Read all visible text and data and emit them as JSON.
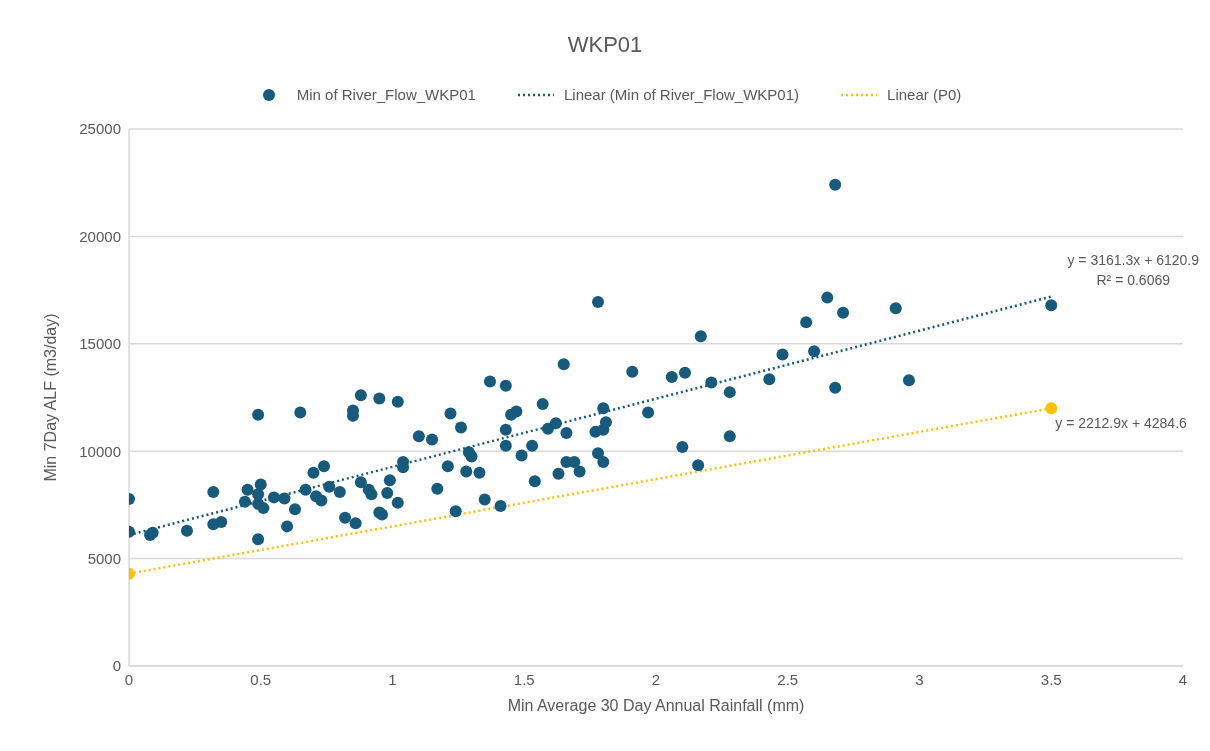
{
  "chart_data": {
    "type": "scatter",
    "title": "WKP01",
    "xlabel": "Min Average 30 Day Annual Rainfall (mm)",
    "ylabel": "Min 7Day ALF (m3/day)",
    "xlim": [
      0,
      4
    ],
    "xticks": [
      0,
      0.5,
      1,
      1.5,
      2,
      2.5,
      3,
      3.5,
      4
    ],
    "ylim": [
      0,
      25000
    ],
    "yticks": [
      0,
      5000,
      10000,
      15000,
      20000,
      25000
    ],
    "grid": "y",
    "legend": "top",
    "marker": "circle",
    "annotations": [
      {
        "text": "y = 3161.3x + 6120.9",
        "x": 3.5,
        "y": 17200
      },
      "R² = 0.6069",
      {
        "text": "y = 2212.9x + 4284.6",
        "x": 3.5,
        "y": 12000
      }
    ],
    "series": [
      {
        "name": "Min of River_Flow_WKP01",
        "color": "#175a7b",
        "x": [
          0,
          0,
          0.08,
          0.09,
          0.22,
          0.32,
          0.32,
          0.35,
          0.44,
          0.45,
          0.49,
          0.49,
          0.49,
          0.49,
          0.5,
          0.51,
          0.55,
          0.59,
          0.6,
          0.63,
          0.65,
          0.67,
          0.7,
          0.71,
          0.74,
          0.73,
          0.76,
          0.8,
          0.82,
          0.85,
          0.85,
          0.86,
          0.88,
          0.88,
          0.91,
          0.92,
          0.95,
          0.95,
          0.96,
          0.98,
          0.99,
          1.02,
          1.02,
          1.04,
          1.04,
          1.1,
          1.15,
          1.17,
          1.21,
          1.22,
          1.24,
          1.26,
          1.28,
          1.29,
          1.3,
          1.33,
          1.35,
          1.37,
          1.41,
          1.43,
          1.43,
          1.43,
          1.45,
          1.47,
          1.49,
          1.53,
          1.54,
          1.57,
          1.59,
          1.62,
          1.63,
          1.65,
          1.66,
          1.66,
          1.69,
          1.71,
          1.77,
          1.78,
          1.78,
          1.8,
          1.8,
          1.8,
          1.81,
          1.91,
          1.97,
          2.06,
          2.1,
          2.11,
          2.16,
          2.17,
          2.21,
          2.28,
          2.28,
          2.43,
          2.48,
          2.57,
          2.6,
          2.65,
          2.68,
          2.68,
          2.71,
          2.91,
          2.96,
          3.5
        ],
        "values": [
          7770,
          6250,
          6100,
          6200,
          6300,
          6600,
          8100,
          6700,
          7650,
          8200,
          11700,
          8000,
          7550,
          5900,
          8450,
          7350,
          7850,
          7800,
          6500,
          7300,
          11800,
          8200,
          9000,
          7900,
          9300,
          7700,
          8350,
          8100,
          6900,
          11900,
          11650,
          6650,
          8550,
          12600,
          8200,
          8000,
          12450,
          7150,
          7050,
          8050,
          8650,
          12300,
          7600,
          9250,
          9500,
          10700,
          10550,
          8250,
          9300,
          11750,
          7200,
          11100,
          9050,
          9950,
          9750,
          9000,
          7750,
          13250,
          7450,
          11000,
          10250,
          13050,
          11700,
          11850,
          9800,
          10250,
          8600,
          12200,
          11050,
          11300,
          8950,
          14050,
          10850,
          9500,
          9500,
          9050,
          10900,
          16950,
          9900,
          11000,
          9500,
          12000,
          11350,
          13700,
          11800,
          13450,
          10200,
          13650,
          9350,
          15350,
          13200,
          12750,
          10700,
          13350,
          14500,
          16000,
          14650,
          17150,
          22400,
          12950,
          16450,
          16650,
          13300,
          16800
        ]
      },
      {
        "name": "Linear (Min of River_Flow_WKP01)",
        "type": "line",
        "color": "#175a7b",
        "line_style": "dotted",
        "marker": "none",
        "x": [
          0,
          3.5
        ],
        "values": [
          6100,
          17200
        ]
      },
      {
        "color": "#ffc000",
        "x": [
          0,
          3.5
        ],
        "values": [
          4300,
          12000
        ]
      },
      {
        "name": "Linear (P0)",
        "type": "line",
        "color": "#ffc000",
        "line_style": "dotted",
        "marker": "none",
        "x": [
          0,
          3.5
        ],
        "values": [
          4300,
          12000
        ]
      }
    ]
  }
}
